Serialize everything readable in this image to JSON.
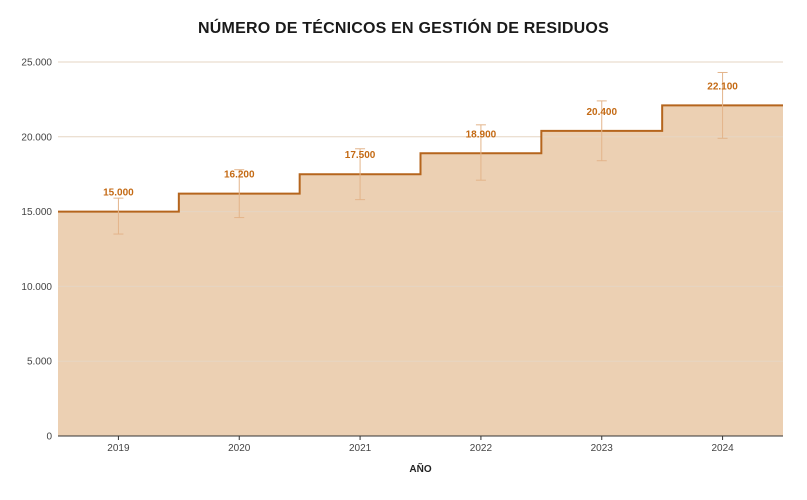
{
  "colors": {
    "line": "#b5651d",
    "fill": "#ecd0b3",
    "label": "#c46a14",
    "error": "#e3b48a",
    "grid": "#e6d5c3"
  },
  "chart_data": {
    "type": "area",
    "title": "NÚMERO DE TÉCNICOS EN GESTIÓN DE RESIDUOS",
    "xlabel": "AÑO",
    "ylabel": "",
    "categories": [
      "2019",
      "2020",
      "2021",
      "2022",
      "2023",
      "2024"
    ],
    "values": [
      15000,
      16200,
      17500,
      18900,
      20400,
      22100
    ],
    "value_labels": [
      "15.000",
      "16.200",
      "17.500",
      "18.900",
      "20.400",
      "22.100"
    ],
    "error_low": [
      13500,
      14600,
      15800,
      17100,
      18400,
      19900
    ],
    "error_high": [
      15900,
      17800,
      19200,
      20800,
      22400,
      24300
    ],
    "ylim": [
      0,
      25000
    ],
    "yticks": [
      0,
      5000,
      10000,
      15000,
      20000,
      25000
    ],
    "ytick_labels": [
      "0",
      "5.000",
      "10.000",
      "15.000",
      "20.000",
      "25.000"
    ],
    "step": true,
    "grid": true,
    "legend": "none"
  }
}
